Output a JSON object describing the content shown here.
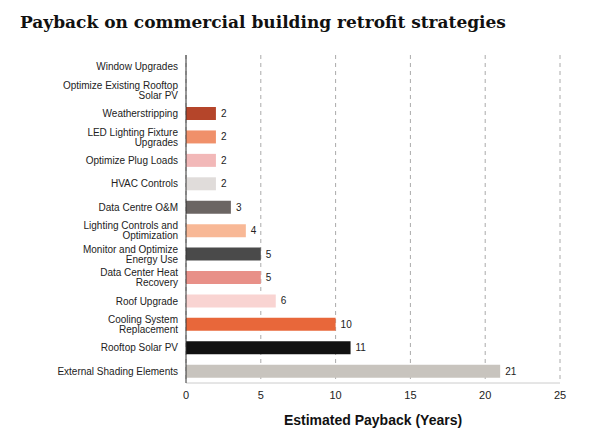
{
  "chart_data": {
    "type": "bar",
    "title": "Payback on commercial building retrofit strategies",
    "x_label": "Estimated Payback (Years)",
    "orientation": "horizontal",
    "categories": [
      "Window Upgrades",
      "Optimize Existing Rooftop Solar PV",
      "Weatherstripping",
      "LED Lighting Fixture Upgrades",
      "Optimize Plug Loads",
      "HVAC Controls",
      "Data Centre O&M",
      "Lighting Controls and Optimization",
      "Monitor and Optimize Energy Use",
      "Data Center Heat Recovery",
      "Roof Upgrade",
      "Cooling System Replacement",
      "Rooftop Solar PV",
      "External Shading Elements"
    ],
    "values": [
      0,
      0,
      2,
      2,
      2,
      2,
      3,
      4,
      5,
      5,
      6,
      10,
      11,
      21
    ],
    "colors": [
      "#999999",
      "#999999",
      "#b5452a",
      "#f0906a",
      "#f2b8b8",
      "#e0dcda",
      "#6b6563",
      "#f8b896",
      "#4a4a4a",
      "#e89088",
      "#f9d4d2",
      "#e8673a",
      "#111111",
      "#c8c4be"
    ],
    "xlim": [
      0,
      25
    ],
    "xticks": [
      0,
      5,
      10,
      15,
      20,
      25
    ],
    "grid": true,
    "data_labels": true
  }
}
